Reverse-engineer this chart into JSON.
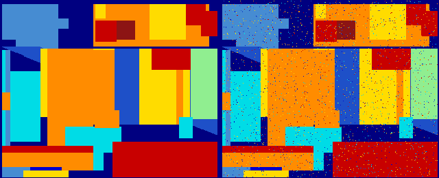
{
  "figsize": [
    6.4,
    2.6
  ],
  "dpi": 100,
  "colors": {
    "dark_blue": [
      0,
      0,
      128
    ],
    "blue": [
      0,
      0,
      200
    ],
    "med_blue": [
      30,
      80,
      200
    ],
    "light_blue": [
      70,
      140,
      210
    ],
    "cyan": [
      0,
      220,
      230
    ],
    "orange": [
      255,
      140,
      0
    ],
    "yellow": [
      255,
      220,
      0
    ],
    "red": [
      200,
      0,
      0
    ],
    "dark_red": [
      140,
      20,
      20
    ],
    "green": [
      144,
      238,
      144
    ]
  }
}
